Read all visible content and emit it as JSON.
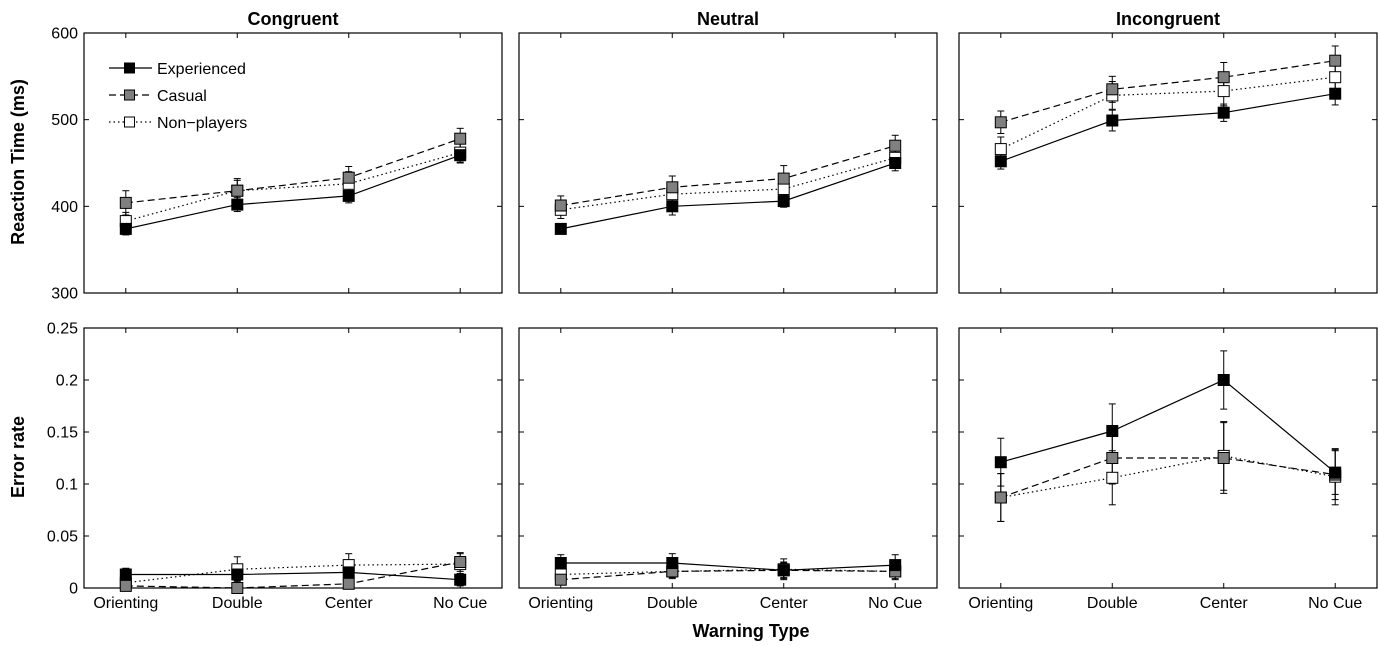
{
  "figure": {
    "xlabel": "Warning Type",
    "ylabel_top": "Reaction Time (ms)",
    "ylabel_bottom": "Error rate"
  },
  "legend": {
    "placement": "top-left of Congruent reaction time panel",
    "entries": [
      {
        "name": "Experienced",
        "line": "solid",
        "marker": "filled-black-square"
      },
      {
        "name": "Casual",
        "line": "dashed",
        "marker": "gray-square"
      },
      {
        "name": "Non−players",
        "line": "dotted",
        "marker": "white-square"
      }
    ]
  },
  "colors": {
    "experienced": "#000000",
    "casual": "#808080",
    "nonplayers": "#ffffff",
    "frame": "#000000"
  },
  "chart_data": [
    {
      "type": "line",
      "title": "Congruent",
      "xlabel": "",
      "ylabel": "Reaction Time (ms)",
      "categories": [
        "Orienting",
        "Double",
        "Center",
        "No Cue"
      ],
      "ylim": [
        300,
        600
      ],
      "yticks": [
        "300",
        "400",
        "500",
        "600"
      ],
      "grid": false,
      "show_xticklabels": false,
      "show_yticklabels": true,
      "series": [
        {
          "name": "Experienced",
          "values": [
            374,
            402,
            412,
            459
          ],
          "errors": [
            7,
            8,
            8,
            9
          ]
        },
        {
          "name": "Casual",
          "values": [
            404,
            418,
            433,
            478
          ],
          "errors": [
            14,
            12,
            13,
            12
          ]
        },
        {
          "name": "Non−players",
          "values": [
            383,
            418,
            426,
            462
          ],
          "errors": [
            10,
            14,
            14,
            11
          ]
        }
      ]
    },
    {
      "type": "line",
      "title": "Neutral",
      "xlabel": "",
      "ylabel": "",
      "categories": [
        "Orienting",
        "Double",
        "Center",
        "No Cue"
      ],
      "ylim": [
        300,
        600
      ],
      "yticks": [
        "300",
        "400",
        "500",
        "600"
      ],
      "grid": false,
      "show_xticklabels": false,
      "show_yticklabels": false,
      "series": [
        {
          "name": "Experienced",
          "values": [
            374,
            400,
            406,
            450
          ],
          "errors": [
            6,
            10,
            7,
            9
          ]
        },
        {
          "name": "Casual",
          "values": [
            401,
            422,
            432,
            470
          ],
          "errors": [
            11,
            13,
            15,
            12
          ]
        },
        {
          "name": "Non−players",
          "values": [
            396,
            414,
            420,
            456
          ],
          "errors": [
            10,
            13,
            13,
            10
          ]
        }
      ]
    },
    {
      "type": "line",
      "title": "Incongruent",
      "xlabel": "",
      "ylabel": "",
      "categories": [
        "Orienting",
        "Double",
        "Center",
        "No Cue"
      ],
      "ylim": [
        300,
        600
      ],
      "yticks": [
        "300",
        "400",
        "500",
        "600"
      ],
      "grid": false,
      "show_xticklabels": false,
      "show_yticklabels": false,
      "series": [
        {
          "name": "Experienced",
          "values": [
            452,
            499,
            508,
            530
          ],
          "errors": [
            9,
            12,
            10,
            13
          ]
        },
        {
          "name": "Casual",
          "values": [
            497,
            535,
            549,
            568
          ],
          "errors": [
            13,
            15,
            17,
            17
          ]
        },
        {
          "name": "Non−players",
          "values": [
            466,
            528,
            533,
            549
          ],
          "errors": [
            14,
            16,
            17,
            17
          ]
        }
      ]
    },
    {
      "type": "line",
      "title": "",
      "xlabel": "",
      "ylabel": "Error rate",
      "categories": [
        "Orienting",
        "Double",
        "Center",
        "No Cue"
      ],
      "ylim": [
        0,
        0.25
      ],
      "yticks": [
        "0",
        "0.05",
        "0.1",
        "0.15",
        "0.2",
        "0.25"
      ],
      "grid": false,
      "show_xticklabels": true,
      "show_yticklabels": true,
      "series": [
        {
          "name": "Experienced",
          "values": [
            0.013,
            0.013,
            0.015,
            0.008
          ],
          "errors": [
            0.006,
            0.006,
            0.007,
            0.006
          ]
        },
        {
          "name": "Casual",
          "values": [
            0.002,
            0.0,
            0.004,
            0.025
          ],
          "errors": [
            0.003,
            0.002,
            0.004,
            0.009
          ]
        },
        {
          "name": "Non−players",
          "values": [
            0.005,
            0.018,
            0.022,
            0.023
          ],
          "errors": [
            0.006,
            0.012,
            0.011,
            0.01
          ]
        }
      ]
    },
    {
      "type": "line",
      "title": "",
      "xlabel": "",
      "ylabel": "",
      "categories": [
        "Orienting",
        "Double",
        "Center",
        "No Cue"
      ],
      "ylim": [
        0,
        0.25
      ],
      "yticks": [
        "0",
        "0.05",
        "0.1",
        "0.15",
        "0.2",
        "0.25"
      ],
      "grid": false,
      "show_xticklabels": true,
      "show_yticklabels": false,
      "series": [
        {
          "name": "Experienced",
          "values": [
            0.024,
            0.024,
            0.017,
            0.022
          ],
          "errors": [
            0.008,
            0.009,
            0.008,
            0.01
          ]
        },
        {
          "name": "Casual",
          "values": [
            0.008,
            0.016,
            0.017,
            0.016
          ],
          "errors": [
            0.005,
            0.006,
            0.007,
            0.007
          ]
        },
        {
          "name": "Non−players",
          "values": [
            0.013,
            0.016,
            0.018,
            0.016
          ],
          "errors": [
            0.007,
            0.007,
            0.01,
            0.008
          ]
        }
      ]
    },
    {
      "type": "line",
      "title": "",
      "xlabel": "",
      "ylabel": "",
      "categories": [
        "Orienting",
        "Double",
        "Center",
        "No Cue"
      ],
      "ylim": [
        0,
        0.25
      ],
      "yticks": [
        "0",
        "0.05",
        "0.1",
        "0.15",
        "0.2",
        "0.25"
      ],
      "grid": false,
      "show_xticklabels": true,
      "show_yticklabels": false,
      "series": [
        {
          "name": "Experienced",
          "values": [
            0.121,
            0.151,
            0.2,
            0.111
          ],
          "errors": [
            0.023,
            0.026,
            0.028,
            0.021
          ]
        },
        {
          "name": "Casual",
          "values": [
            0.087,
            0.125,
            0.125,
            0.109
          ],
          "errors": [
            0.023,
            0.025,
            0.034,
            0.024
          ]
        },
        {
          "name": "Non−players",
          "values": [
            0.087,
            0.106,
            0.127,
            0.107
          ],
          "errors": [
            0.023,
            0.026,
            0.033,
            0.027
          ]
        }
      ]
    }
  ]
}
